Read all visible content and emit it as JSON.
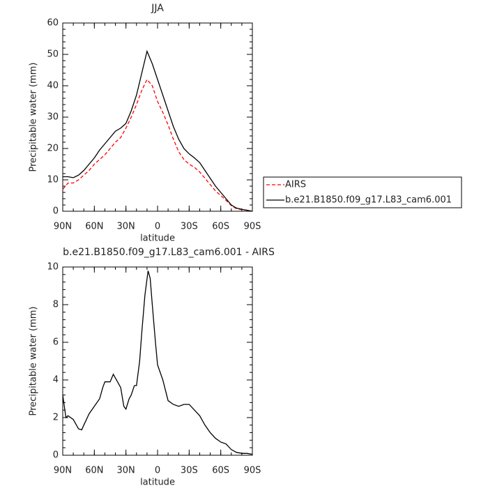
{
  "chart_data": [
    {
      "type": "line",
      "title": "JJA",
      "xlabel": "latitude",
      "ylabel": "Precipitable water (mm)",
      "x": [
        90,
        85,
        80,
        75,
        70,
        65,
        60,
        55,
        50,
        45,
        40,
        35,
        30,
        25,
        20,
        15,
        10,
        5,
        0,
        -5,
        -10,
        -15,
        -20,
        -25,
        -30,
        -35,
        -40,
        -45,
        -50,
        -55,
        -60,
        -65,
        -70,
        -75,
        -80,
        -85,
        -90
      ],
      "xlim": [
        90,
        -90
      ],
      "xticks": [
        {
          "value": 90,
          "label": "90N"
        },
        {
          "value": 60,
          "label": "60N"
        },
        {
          "value": 30,
          "label": "30N"
        },
        0,
        {
          "value": -30,
          "label": "30S"
        },
        {
          "value": -60,
          "label": "60S"
        },
        {
          "value": -90,
          "label": "90S"
        }
      ],
      "ylim": [
        0,
        60
      ],
      "yticks": [
        0,
        10,
        20,
        30,
        40,
        50,
        60
      ],
      "legend": "right",
      "series": [
        {
          "name": "AIRS",
          "color": "#ff0000",
          "linestyle": "dashed",
          "values": [
            7,
            9,
            9,
            10,
            11.5,
            13,
            15,
            16.5,
            18,
            20,
            22,
            23.5,
            26.5,
            30,
            34,
            38.5,
            42,
            40,
            35,
            31.5,
            27.5,
            23,
            19,
            16.5,
            15,
            14,
            12.5,
            10.5,
            8.5,
            6.5,
            5,
            3.5,
            1.8,
            0.8,
            0.5,
            0.3,
            0
          ]
        },
        {
          "name": "b.e21.B1850.f09_g17.L83_cam6.001",
          "color": "#000000",
          "linestyle": "solid",
          "values": [
            11,
            11,
            10.7,
            11.5,
            13,
            15,
            17,
            19.5,
            21.5,
            23.5,
            25.5,
            26.5,
            28,
            32,
            37,
            44,
            51,
            47,
            42,
            37,
            32,
            27,
            23,
            20,
            18.3,
            17,
            15.5,
            13,
            10.5,
            8,
            6,
            4,
            2,
            1,
            0.6,
            0.3,
            0
          ]
        }
      ]
    },
    {
      "type": "line",
      "title": "b.e21.B1850.f09_g17.L83_cam6.001 - AIRS",
      "xlabel": "latitude",
      "ylabel": "Precipitable water (mm)",
      "x": [
        90,
        87,
        85,
        80,
        75,
        72,
        70,
        65,
        60,
        55,
        52,
        50,
        45,
        42,
        40,
        35,
        32,
        30,
        27,
        25,
        22,
        20,
        17,
        15,
        12,
        9,
        7,
        5,
        2,
        0,
        -5,
        -10,
        -15,
        -20,
        -25,
        -30,
        -35,
        -40,
        -45,
        -50,
        -55,
        -60,
        -65,
        -70,
        -75,
        -80,
        -85,
        -90
      ],
      "xlim": [
        90,
        -90
      ],
      "xticks": [
        {
          "value": 90,
          "label": "90N"
        },
        {
          "value": 60,
          "label": "60N"
        },
        {
          "value": 30,
          "label": "30N"
        },
        0,
        {
          "value": -30,
          "label": "30S"
        },
        {
          "value": -60,
          "label": "60S"
        },
        {
          "value": -90,
          "label": "90S"
        }
      ],
      "ylim": [
        0,
        10
      ],
      "yticks": [
        0,
        2,
        4,
        6,
        8,
        10
      ],
      "series": [
        {
          "color": "#000000",
          "linestyle": "solid",
          "values": [
            3.2,
            2,
            2.1,
            1.9,
            1.4,
            1.35,
            1.6,
            2.2,
            2.6,
            3,
            3.6,
            3.9,
            3.9,
            4.3,
            4.1,
            3.6,
            2.6,
            2.45,
            3,
            3.2,
            3.7,
            3.7,
            5,
            6.5,
            8.5,
            9.8,
            9.4,
            8,
            6,
            4.8,
            4,
            2.9,
            2.7,
            2.6,
            2.7,
            2.7,
            2.4,
            2.1,
            1.6,
            1.2,
            0.9,
            0.7,
            0.6,
            0.3,
            0.15,
            0.1,
            0.1,
            0.05
          ]
        }
      ]
    }
  ]
}
